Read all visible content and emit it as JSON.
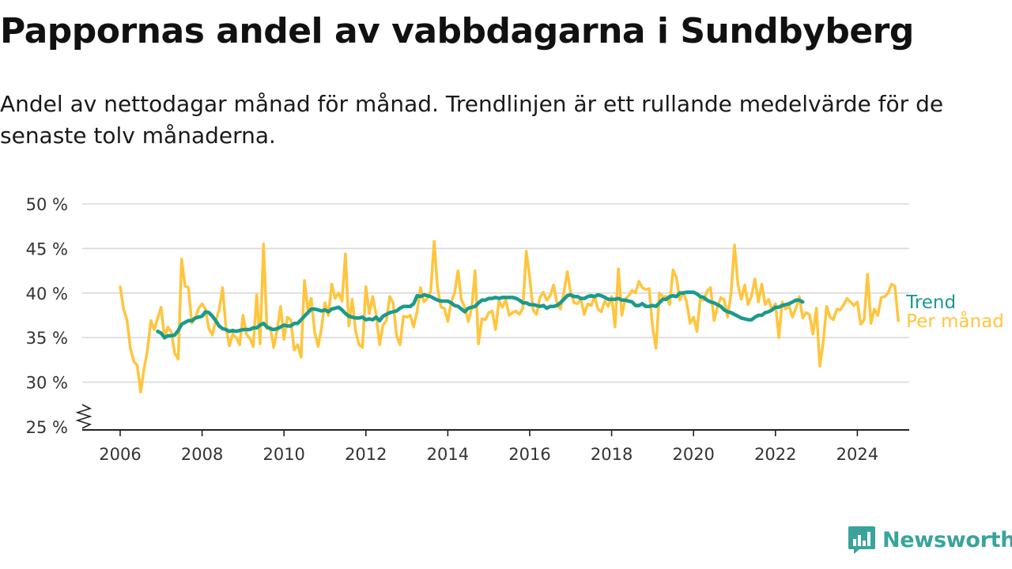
{
  "title": "Pappornas andel av vabbdagarna i Sundbyberg",
  "subtitle": "Andel av nettodagar månad för månad. Trendlinjen är ett rullande medelvärde för de senaste tolv månaderna.",
  "brand": {
    "name": "Newsworthy",
    "icon": "bar-chart-speech-bubble-icon"
  },
  "colors": {
    "trend": "#1a9a8c",
    "monthly": "#ffc53d",
    "grid": "#d9d9d9",
    "axis": "#222222",
    "brand": "#3aa39c"
  },
  "chart_data": {
    "type": "line",
    "x_unit": "year",
    "ylim": [
      25,
      50
    ],
    "xlim": [
      2005.5,
      2025.6
    ],
    "y_ticks": [
      25,
      30,
      35,
      40,
      45,
      50
    ],
    "y_tick_labels": [
      "25 %",
      "30 %",
      "35 %",
      "40 %",
      "45 %",
      "50 %"
    ],
    "x_ticks": [
      2006,
      2008,
      2010,
      2012,
      2014,
      2016,
      2018,
      2020,
      2022,
      2024
    ],
    "x_tick_labels": [
      "2006",
      "2008",
      "2010",
      "2012",
      "2014",
      "2016",
      "2018",
      "2020",
      "2022",
      "2024"
    ],
    "y_axis_break": true,
    "grid": true,
    "legend": "direct labels at right end of lines",
    "series": [
      {
        "name": "Per månad",
        "color": "#ffc53d",
        "start": 2006.0,
        "step": 0.08333,
        "values": [
          40.7,
          38.2,
          37.0,
          33.8,
          32.3,
          31.9,
          28.9,
          31.5,
          33.6,
          36.9,
          35.9,
          37.2,
          38.4,
          34.9,
          36.2,
          35.6,
          33.2,
          32.6,
          43.8,
          40.8,
          40.6,
          36.6,
          37.2,
          38.3,
          38.8,
          38.2,
          36.0,
          35.3,
          36.9,
          38.1,
          40.6,
          36.1,
          34.1,
          35.4,
          35.0,
          34.2,
          37.5,
          35.4,
          34.9,
          34.0,
          39.8,
          34.3,
          45.5,
          36.0,
          36.2,
          33.9,
          35.9,
          38.5,
          34.8,
          37.3,
          37.0,
          33.6,
          34.2,
          32.8,
          41.4,
          38.1,
          39.4,
          35.6,
          34.0,
          36.1,
          38.9,
          37.5,
          41.0,
          39.4,
          40.0,
          39.1,
          44.4,
          36.3,
          39.3,
          35.7,
          34.2,
          33.9,
          40.7,
          37.7,
          39.6,
          37.6,
          34.2,
          36.4,
          36.9,
          39.6,
          38.9,
          35.2,
          34.2,
          37.4,
          37.3,
          37.5,
          36.2,
          37.9,
          40.6,
          39.0,
          39.4,
          40.2,
          45.8,
          40.6,
          38.4,
          38.3,
          36.8,
          39.0,
          40.0,
          42.5,
          39.2,
          38.4,
          36.8,
          38.3,
          42.5,
          34.3,
          37.1,
          37.0,
          37.8,
          38.0,
          35.9,
          39.1,
          38.4,
          39.2,
          37.5,
          37.8,
          38.0,
          37.6,
          38.3,
          44.7,
          41.7,
          38.1,
          37.6,
          39.5,
          40.1,
          39.2,
          39.7,
          40.9,
          38.8,
          38.2,
          40.0,
          42.4,
          40.0,
          38.9,
          38.8,
          39.3,
          37.6,
          38.8,
          38.6,
          39.6,
          38.2,
          37.9,
          39.1,
          38.5,
          39.6,
          36.2,
          42.7,
          37.5,
          39.3,
          39.7,
          40.3,
          40.0,
          41.3,
          40.6,
          40.4,
          40.5,
          36.2,
          33.8,
          40.0,
          39.6,
          39.6,
          38.7,
          42.6,
          41.7,
          39.2,
          40.1,
          39.0,
          36.6,
          37.3,
          35.7,
          39.4,
          39.2,
          40.2,
          40.6,
          36.9,
          38.4,
          39.5,
          39.2,
          37.3,
          40.0,
          45.4,
          41.0,
          39.3,
          40.9,
          38.7,
          39.7,
          41.6,
          39.0,
          41.0,
          38.7,
          39.3,
          38.1,
          38.8,
          35.0,
          39.0,
          38.2,
          38.6,
          37.3,
          38.3,
          39.6,
          37.2,
          37.8,
          37.6,
          35.4,
          38.3,
          31.8,
          34.4,
          38.5,
          37.3,
          37.0,
          38.2,
          38.1,
          38.7,
          39.4,
          39.0,
          38.6,
          39.0,
          36.5,
          37.0,
          42.1,
          36.6,
          38.2,
          37.5,
          39.5,
          39.6,
          40.0,
          41.0,
          40.8,
          36.9
        ]
      },
      {
        "name": "Trend",
        "color": "#1a9a8c",
        "start": 2006.917,
        "step": 0.08333,
        "values": [
          35.7,
          35.5,
          35.0,
          35.2,
          35.2,
          35.3,
          35.8,
          36.5,
          36.7,
          36.9,
          36.9,
          37.2,
          37.3,
          37.4,
          37.9,
          37.8,
          37.4,
          36.9,
          36.3,
          36.0,
          35.9,
          35.7,
          35.8,
          35.7,
          35.8,
          35.9,
          35.9,
          35.9,
          36.1,
          36.1,
          36.4,
          36.6,
          36.2,
          36.0,
          35.9,
          36.0,
          36.2,
          36.4,
          36.3,
          36.3,
          36.6,
          36.6,
          37.0,
          37.4,
          37.8,
          38.2,
          38.2,
          38.1,
          38.0,
          38.1,
          37.9,
          38.2,
          38.3,
          38.4,
          38.1,
          37.7,
          37.4,
          37.3,
          37.2,
          37.2,
          37.3,
          37.0,
          37.1,
          37.0,
          37.3,
          36.9,
          37.4,
          37.6,
          37.8,
          37.9,
          38.0,
          38.3,
          38.5,
          38.5,
          38.5,
          38.8,
          39.7,
          39.6,
          39.8,
          39.7,
          39.6,
          39.4,
          39.2,
          39.1,
          39.1,
          39.1,
          38.9,
          38.6,
          38.5,
          38.2,
          37.9,
          38.3,
          38.4,
          38.5,
          38.9,
          39.2,
          39.2,
          39.4,
          39.4,
          39.5,
          39.4,
          39.5,
          39.5,
          39.5,
          39.5,
          39.4,
          39.2,
          38.9,
          38.9,
          38.7,
          38.7,
          38.6,
          38.5,
          38.6,
          38.3,
          38.5,
          38.5,
          38.6,
          38.9,
          39.3,
          39.7,
          39.8,
          39.6,
          39.6,
          39.4,
          39.4,
          39.6,
          39.7,
          39.6,
          39.8,
          39.7,
          39.5,
          39.3,
          39.3,
          39.3,
          39.4,
          39.2,
          39.2,
          39.1,
          39.0,
          38.6,
          38.6,
          38.8,
          38.5,
          38.5,
          38.6,
          38.5,
          38.9,
          39.3,
          39.3,
          39.6,
          39.7,
          39.6,
          40.0,
          40.0,
          40.1,
          40.1,
          40.1,
          39.9,
          39.6,
          39.5,
          39.2,
          39.0,
          38.9,
          38.7,
          38.5,
          38.1,
          37.9,
          37.8,
          37.6,
          37.4,
          37.2,
          37.1,
          37.0,
          37.0,
          37.3,
          37.5,
          37.5,
          37.8,
          37.9,
          38.1,
          38.4,
          38.4,
          38.6,
          38.7,
          38.8,
          39.0,
          39.2,
          39.2,
          39.0
        ]
      }
    ]
  }
}
